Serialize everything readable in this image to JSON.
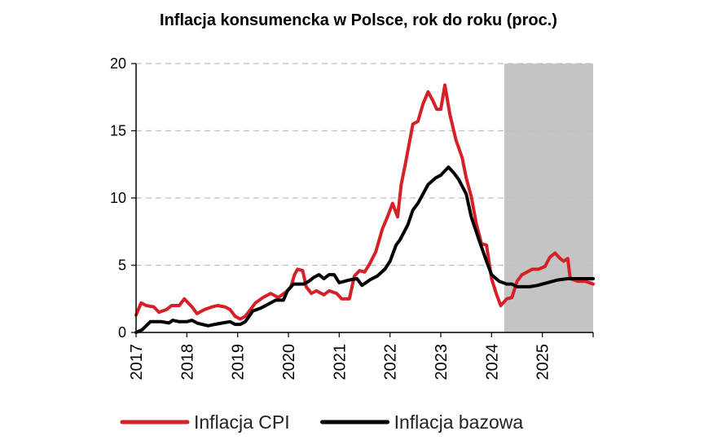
{
  "title": "Inflacja konsumencka w Polsce, rok do roku (proc.)",
  "colors": {
    "cpi": "#d62027",
    "core": "#000000",
    "forecast_band": "#c4c4c4",
    "grid": "#bfbfbf"
  },
  "chart_data": {
    "type": "line",
    "title": "Inflacja konsumencka w Polsce, rok do roku (proc.)",
    "xlabel": "",
    "ylabel": "",
    "xlim": [
      2017.0,
      2026.0
    ],
    "ylim": [
      0,
      20
    ],
    "yticks": [
      "0",
      "5",
      "10",
      "15",
      "20"
    ],
    "xticks": [
      "2017",
      "2018",
      "2019",
      "2020",
      "2021",
      "2022",
      "2023",
      "2024",
      "2025"
    ],
    "grid": "horizontal dashed",
    "legend_position": "bottom",
    "forecast_band": [
      2024.25,
      2026.0
    ],
    "series": [
      {
        "name": "Inflacja CPI",
        "color": "#d62027",
        "points": [
          [
            2017.0,
            1.3
          ],
          [
            2017.1,
            2.2
          ],
          [
            2017.2,
            2.0
          ],
          [
            2017.35,
            1.9
          ],
          [
            2017.45,
            1.5
          ],
          [
            2017.6,
            1.7
          ],
          [
            2017.7,
            2.0
          ],
          [
            2017.85,
            2.0
          ],
          [
            2017.95,
            2.5
          ],
          [
            2018.1,
            1.9
          ],
          [
            2018.2,
            1.4
          ],
          [
            2018.35,
            1.7
          ],
          [
            2018.5,
            1.9
          ],
          [
            2018.6,
            2.0
          ],
          [
            2018.75,
            1.9
          ],
          [
            2018.85,
            1.7
          ],
          [
            2018.95,
            1.2
          ],
          [
            2019.05,
            1.0
          ],
          [
            2019.15,
            1.2
          ],
          [
            2019.25,
            1.7
          ],
          [
            2019.35,
            2.2
          ],
          [
            2019.5,
            2.6
          ],
          [
            2019.65,
            2.9
          ],
          [
            2019.8,
            2.6
          ],
          [
            2019.95,
            3.0
          ],
          [
            2020.05,
            3.4
          ],
          [
            2020.12,
            4.3
          ],
          [
            2020.18,
            4.7
          ],
          [
            2020.28,
            4.6
          ],
          [
            2020.35,
            3.4
          ],
          [
            2020.45,
            2.9
          ],
          [
            2020.55,
            3.1
          ],
          [
            2020.7,
            2.8
          ],
          [
            2020.8,
            3.1
          ],
          [
            2020.95,
            2.9
          ],
          [
            2021.05,
            2.5
          ],
          [
            2021.2,
            2.5
          ],
          [
            2021.3,
            4.2
          ],
          [
            2021.4,
            4.6
          ],
          [
            2021.5,
            4.5
          ],
          [
            2021.6,
            5.1
          ],
          [
            2021.72,
            6.0
          ],
          [
            2021.85,
            7.7
          ],
          [
            2021.95,
            8.6
          ],
          [
            2022.05,
            9.6
          ],
          [
            2022.15,
            8.6
          ],
          [
            2022.22,
            11.0
          ],
          [
            2022.3,
            12.5
          ],
          [
            2022.45,
            15.5
          ],
          [
            2022.55,
            15.7
          ],
          [
            2022.65,
            17.0
          ],
          [
            2022.75,
            17.9
          ],
          [
            2022.85,
            17.2
          ],
          [
            2022.92,
            16.6
          ],
          [
            2023.0,
            16.6
          ],
          [
            2023.08,
            18.4
          ],
          [
            2023.18,
            16.2
          ],
          [
            2023.3,
            14.3
          ],
          [
            2023.42,
            13.0
          ],
          [
            2023.5,
            11.5
          ],
          [
            2023.6,
            10.1
          ],
          [
            2023.7,
            8.1
          ],
          [
            2023.8,
            6.6
          ],
          [
            2023.9,
            6.5
          ],
          [
            2024.0,
            4.0
          ],
          [
            2024.1,
            2.8
          ],
          [
            2024.18,
            2.0
          ],
          [
            2024.3,
            2.5
          ],
          [
            2024.4,
            2.6
          ],
          [
            2024.5,
            3.8
          ],
          [
            2024.6,
            4.3
          ],
          [
            2024.7,
            4.5
          ],
          [
            2024.8,
            4.7
          ],
          [
            2024.92,
            4.7
          ],
          [
            2025.05,
            4.9
          ],
          [
            2025.15,
            5.6
          ],
          [
            2025.25,
            5.9
          ],
          [
            2025.35,
            5.5
          ],
          [
            2025.42,
            5.3
          ],
          [
            2025.5,
            5.5
          ],
          [
            2025.55,
            4.0
          ],
          [
            2025.7,
            3.8
          ],
          [
            2025.85,
            3.8
          ],
          [
            2026.0,
            3.6
          ]
        ]
      },
      {
        "name": "Inflacja bazowa",
        "color": "#000000",
        "points": [
          [
            2017.0,
            0.0
          ],
          [
            2017.12,
            0.2
          ],
          [
            2017.28,
            0.8
          ],
          [
            2017.5,
            0.8
          ],
          [
            2017.65,
            0.7
          ],
          [
            2017.72,
            0.9
          ],
          [
            2017.85,
            0.8
          ],
          [
            2018.0,
            0.8
          ],
          [
            2018.1,
            0.9
          ],
          [
            2018.2,
            0.7
          ],
          [
            2018.3,
            0.6
          ],
          [
            2018.42,
            0.5
          ],
          [
            2018.55,
            0.6
          ],
          [
            2018.7,
            0.7
          ],
          [
            2018.85,
            0.8
          ],
          [
            2018.95,
            0.6
          ],
          [
            2019.05,
            0.6
          ],
          [
            2019.15,
            0.8
          ],
          [
            2019.3,
            1.6
          ],
          [
            2019.45,
            1.8
          ],
          [
            2019.6,
            2.1
          ],
          [
            2019.75,
            2.4
          ],
          [
            2019.9,
            2.4
          ],
          [
            2019.98,
            3.1
          ],
          [
            2020.1,
            3.6
          ],
          [
            2020.2,
            3.6
          ],
          [
            2020.3,
            3.6
          ],
          [
            2020.4,
            3.8
          ],
          [
            2020.5,
            4.1
          ],
          [
            2020.6,
            4.3
          ],
          [
            2020.7,
            4.0
          ],
          [
            2020.8,
            4.3
          ],
          [
            2020.9,
            4.3
          ],
          [
            2021.0,
            3.7
          ],
          [
            2021.1,
            3.8
          ],
          [
            2021.2,
            3.9
          ],
          [
            2021.35,
            4.0
          ],
          [
            2021.45,
            3.5
          ],
          [
            2021.6,
            3.9
          ],
          [
            2021.75,
            4.2
          ],
          [
            2021.9,
            4.7
          ],
          [
            2022.0,
            5.3
          ],
          [
            2022.12,
            6.5
          ],
          [
            2022.2,
            6.9
          ],
          [
            2022.35,
            8.0
          ],
          [
            2022.45,
            9.1
          ],
          [
            2022.55,
            9.6
          ],
          [
            2022.65,
            10.3
          ],
          [
            2022.75,
            11.0
          ],
          [
            2022.9,
            11.5
          ],
          [
            2023.0,
            11.7
          ],
          [
            2023.15,
            12.3
          ],
          [
            2023.25,
            11.9
          ],
          [
            2023.35,
            11.4
          ],
          [
            2023.5,
            10.3
          ],
          [
            2023.6,
            8.6
          ],
          [
            2023.75,
            6.9
          ],
          [
            2023.9,
            5.3
          ],
          [
            2024.0,
            4.3
          ],
          [
            2024.15,
            3.8
          ],
          [
            2024.3,
            3.6
          ],
          [
            2024.4,
            3.6
          ],
          [
            2024.5,
            3.4
          ],
          [
            2024.6,
            3.4
          ],
          [
            2024.75,
            3.4
          ],
          [
            2024.9,
            3.5
          ],
          [
            2025.1,
            3.7
          ],
          [
            2025.3,
            3.9
          ],
          [
            2025.5,
            4.0
          ],
          [
            2025.7,
            4.0
          ],
          [
            2026.0,
            4.0
          ]
        ]
      }
    ]
  },
  "legend": [
    {
      "label": "Inflacja CPI",
      "color": "#d62027"
    },
    {
      "label": "Inflacja bazowa",
      "color": "#000000"
    }
  ]
}
